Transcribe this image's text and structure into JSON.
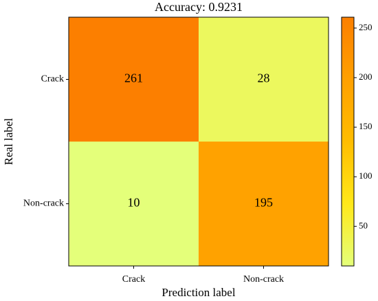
{
  "chart_data": {
    "type": "heatmap",
    "title": "Accuracy: 0.9231",
    "x_categories": [
      "Crack",
      "Non-crack"
    ],
    "y_categories": [
      "Crack",
      "Non-crack"
    ],
    "values": [
      [
        261,
        28
      ],
      [
        10,
        195
      ]
    ],
    "xlabel": "Prediction label",
    "ylabel": "Real label",
    "clim": [
      10,
      261
    ],
    "cticks": [
      50,
      100,
      150,
      200,
      250
    ],
    "colormap": [
      "#e4ff7a",
      "#ffe81a",
      "#ffbd00",
      "#ffa000",
      "#fc7f00"
    ]
  }
}
